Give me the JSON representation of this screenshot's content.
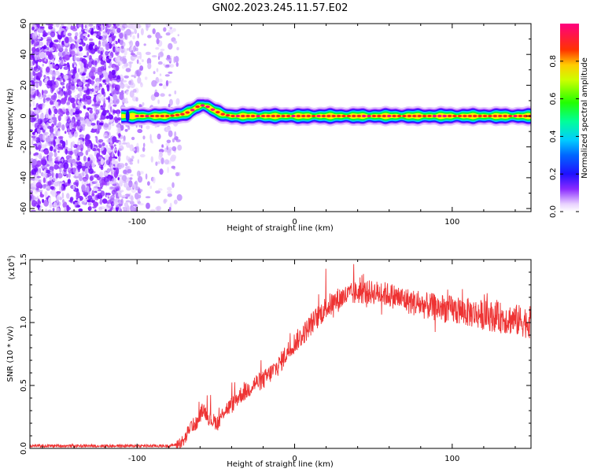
{
  "title": "GN02.2023.245.11.57.E02",
  "colors": {
    "snr_line": "#ee3333",
    "colormap": [
      "#ffffff",
      "#e2c4ff",
      "#9b3bff",
      "#6a00ff",
      "#1a10ff",
      "#00c8ff",
      "#00ff33",
      "#ffee00",
      "#ff2020",
      "#ff0080"
    ]
  },
  "chart_data": [
    {
      "type": "heatmap",
      "xlabel": "Height of straight line (km)",
      "ylabel": "Frequency (Hz)",
      "xlim": [
        -168,
        150
      ],
      "ylim": [
        -62,
        60
      ],
      "x_ticks": [
        -100,
        0,
        100
      ],
      "x_tick_labels": [
        "-100",
        "0",
        "100"
      ],
      "y_ticks": [
        -60,
        -40,
        -20,
        0,
        20,
        40,
        60
      ],
      "y_tick_labels": [
        "-60",
        "-40",
        "-20",
        "0",
        "20",
        "40",
        "60"
      ],
      "noise_region_x": [
        -168,
        -73
      ],
      "ridge": {
        "x": [
          -110,
          -100,
          -90,
          -80,
          -72,
          -66,
          -62,
          -58,
          -55,
          -50,
          -45,
          -40,
          -30,
          -20,
          -10,
          0,
          20,
          40,
          60,
          80,
          100,
          120,
          150
        ],
        "y": [
          0,
          0,
          0,
          0,
          1,
          3,
          6,
          7,
          6,
          3,
          1,
          0,
          0,
          0,
          0,
          0,
          0,
          0,
          0,
          0,
          0,
          0,
          0
        ],
        "half_width_hz": 3
      },
      "colorbar": {
        "label": "Normalized spectral amplitude",
        "range": [
          0,
          1
        ],
        "ticks": [
          0.0,
          0.2,
          0.4,
          0.6,
          0.8
        ],
        "tick_labels": [
          "0.0",
          "0.2",
          "0.4",
          "0.6",
          "0.8"
        ]
      }
    },
    {
      "type": "line",
      "xlabel": "Height of straight line (km)",
      "ylabel": "SNR (10 * v/v)",
      "y_multiplier_label": "(x10",
      "y_multiplier_exp": "4",
      "y_multiplier_close": ")",
      "xlim": [
        -168,
        150
      ],
      "ylim": [
        0,
        1.5
      ],
      "x_ticks": [
        -100,
        0,
        100
      ],
      "x_tick_labels": [
        "-100",
        "0",
        "100"
      ],
      "y_ticks": [
        0.0,
        0.5,
        1.0,
        1.5
      ],
      "y_tick_labels": [
        "0.0",
        "0.5",
        "1.0",
        "1.5"
      ],
      "series": [
        {
          "x": [
            -168,
            -150,
            -130,
            -110,
            -90,
            -80,
            -75,
            -70,
            -66,
            -62,
            -58,
            -55,
            -52,
            -48,
            -45,
            -40,
            -35,
            -30,
            -25,
            -20,
            -15,
            -10,
            -5,
            0,
            5,
            10,
            15,
            20,
            25,
            30,
            35,
            40,
            50,
            60,
            70,
            80,
            90,
            100,
            110,
            120,
            130,
            140,
            150
          ],
          "values": [
            0.02,
            0.02,
            0.02,
            0.02,
            0.02,
            0.02,
            0.03,
            0.06,
            0.18,
            0.2,
            0.32,
            0.25,
            0.22,
            0.2,
            0.3,
            0.34,
            0.42,
            0.46,
            0.52,
            0.54,
            0.6,
            0.66,
            0.76,
            0.84,
            0.9,
            0.98,
            1.05,
            1.12,
            1.16,
            1.2,
            1.22,
            1.24,
            1.24,
            1.22,
            1.18,
            1.14,
            1.12,
            1.1,
            1.08,
            1.06,
            1.04,
            1.02,
            1.0
          ]
        }
      ]
    }
  ]
}
